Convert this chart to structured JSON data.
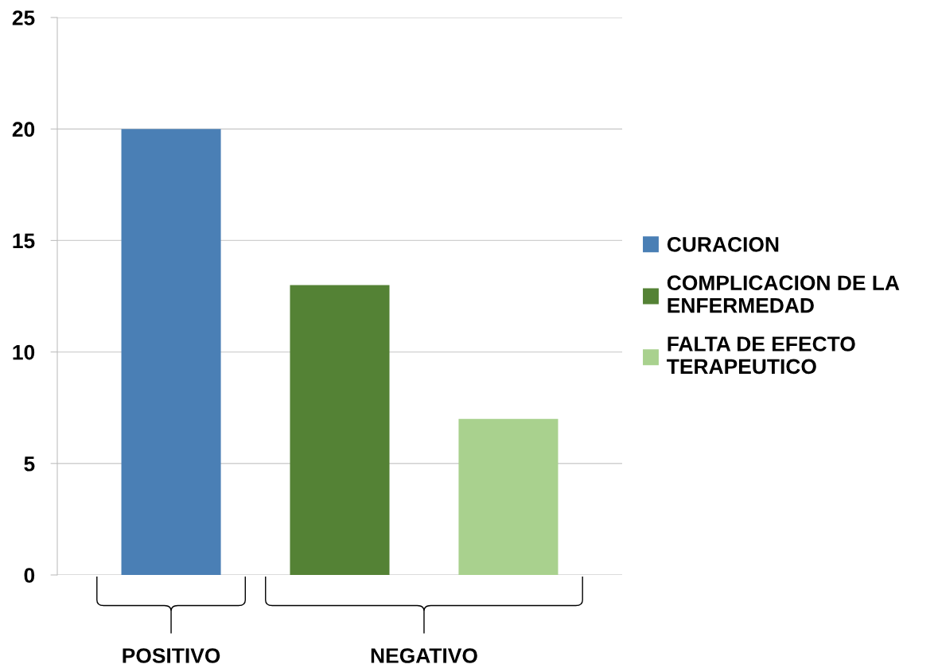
{
  "chart_data": {
    "type": "bar",
    "categories": [
      "POSITIVO",
      "NEGATIVO"
    ],
    "series": [
      {
        "name": "CURACION",
        "color": "#4a7fb5",
        "values": [
          20,
          null
        ]
      },
      {
        "name": "COMPLICACION DE LA ENFERMEDAD",
        "color": "#548235",
        "values": [
          null,
          13
        ]
      },
      {
        "name": "FALTA DE EFECTO TERAPEUTICO",
        "color": "#a9d18e",
        "values": [
          null,
          7
        ]
      }
    ],
    "ylim": [
      0,
      25
    ],
    "yticks": [
      0,
      5,
      10,
      15,
      20,
      25
    ],
    "grid": "y",
    "legend": "right"
  }
}
